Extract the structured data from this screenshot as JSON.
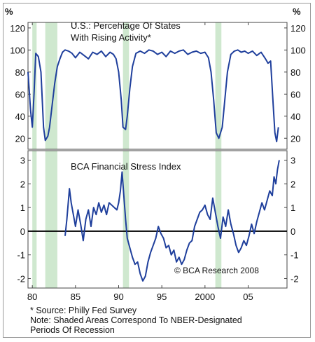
{
  "chart_data": [
    {
      "type": "line",
      "title": "U.S.: Percentage Of States With Rising Activity*",
      "ylabel": "%",
      "ylim": [
        10,
        125
      ],
      "yticks": [
        "20",
        "40",
        "60",
        "80",
        "100",
        "120"
      ],
      "xlim": [
        1979.5,
        2009.5
      ],
      "series": [
        {
          "x": [
            1979.5,
            1979.8,
            1980.0,
            1980.2,
            1980.4,
            1980.7,
            1981.0,
            1981.3,
            1981.5,
            1981.8,
            1982.0,
            1982.3,
            1982.6,
            1982.9,
            1983.2,
            1983.5,
            1983.8,
            1984.2,
            1984.6,
            1985.0,
            1985.5,
            1986.0,
            1986.5,
            1987.0,
            1987.5,
            1988.0,
            1988.5,
            1989.0,
            1989.4,
            1989.7,
            1990.0,
            1990.3,
            1990.5,
            1990.8,
            1991.0,
            1991.3,
            1991.6,
            1992.0,
            1992.5,
            1993.0,
            1993.5,
            1994.0,
            1994.5,
            1995.0,
            1995.5,
            1996.0,
            1996.5,
            1997.0,
            1997.5,
            1998.0,
            1998.5,
            1999.0,
            1999.5,
            2000.0,
            2000.4,
            2000.7,
            2001.0,
            2001.3,
            2001.6,
            2002.0,
            2002.3,
            2002.6,
            2003.0,
            2003.4,
            2003.8,
            2004.2,
            2004.6,
            2005.0,
            2005.5,
            2006.0,
            2006.5,
            2007.0,
            2007.3,
            2007.6,
            2007.9,
            2008.1,
            2008.3,
            2008.5
          ],
          "values": [
            80,
            45,
            30,
            60,
            97,
            94,
            80,
            30,
            18,
            22,
            30,
            50,
            70,
            85,
            92,
            98,
            100,
            99,
            97,
            93,
            98,
            95,
            92,
            98,
            96,
            99,
            94,
            98,
            96,
            92,
            80,
            55,
            30,
            28,
            40,
            65,
            85,
            97,
            99,
            97,
            100,
            99,
            96,
            98,
            94,
            99,
            97,
            99,
            100,
            96,
            98,
            99,
            97,
            98,
            93,
            80,
            55,
            25,
            20,
            30,
            55,
            80,
            96,
            99,
            100,
            98,
            99,
            97,
            99,
            95,
            98,
            92,
            88,
            90,
            50,
            25,
            17,
            30
          ],
          "color": "#1f3f9c"
        }
      ]
    },
    {
      "type": "line",
      "title": "BCA Financial Stress Index",
      "ylim": [
        -2.4,
        3.4
      ],
      "yticks": [
        "-2",
        "-1",
        "0",
        "1",
        "2",
        "3"
      ],
      "xlim": [
        1979.5,
        2009.5
      ],
      "xticks": [
        "80",
        "85",
        "90",
        "95",
        "2000",
        "05"
      ],
      "xtick_values": [
        1980,
        1985,
        1990,
        1995,
        2000,
        2005
      ],
      "annotation": "© BCA Research 2008",
      "series": [
        {
          "x": [
            1983.8,
            1984.0,
            1984.3,
            1984.5,
            1984.8,
            1985.0,
            1985.3,
            1985.6,
            1985.9,
            1986.2,
            1986.5,
            1986.8,
            1987.1,
            1987.4,
            1987.7,
            1988.0,
            1988.3,
            1988.6,
            1988.9,
            1989.2,
            1989.5,
            1989.8,
            1990.0,
            1990.2,
            1990.4,
            1990.6,
            1990.8,
            1991.0,
            1991.3,
            1991.6,
            1991.9,
            1992.2,
            1992.5,
            1992.8,
            1993.1,
            1993.4,
            1993.7,
            1994.0,
            1994.3,
            1994.6,
            1994.9,
            1995.2,
            1995.5,
            1995.8,
            1996.1,
            1996.4,
            1996.7,
            1997.0,
            1997.3,
            1997.6,
            1997.9,
            1998.2,
            1998.5,
            1998.8,
            1999.1,
            1999.4,
            1999.7,
            2000.0,
            2000.3,
            2000.6,
            2000.9,
            2001.2,
            2001.5,
            2001.8,
            2002.1,
            2002.4,
            2002.7,
            2003.0,
            2003.3,
            2003.6,
            2003.9,
            2004.2,
            2004.5,
            2004.8,
            2005.1,
            2005.4,
            2005.7,
            2006.0,
            2006.3,
            2006.6,
            2006.9,
            2007.2,
            2007.5,
            2007.8,
            2008.0,
            2008.2,
            2008.4,
            2008.6
          ],
          "values": [
            -0.2,
            0.5,
            1.8,
            1.2,
            0.6,
            0.2,
            0.9,
            0.3,
            -0.4,
            0.5,
            0.9,
            0.2,
            1.0,
            0.7,
            1.2,
            0.8,
            1.1,
            0.7,
            1.2,
            1.1,
            1.0,
            0.9,
            1.2,
            1.7,
            2.5,
            1.5,
            0.5,
            -0.3,
            -0.7,
            -1.1,
            -1.4,
            -1.3,
            -1.8,
            -2.1,
            -1.9,
            -1.3,
            -0.9,
            -0.6,
            -0.3,
            0.2,
            -0.1,
            -0.3,
            -0.7,
            -0.6,
            -1.0,
            -0.8,
            -1.3,
            -1.1,
            -1.4,
            -1.2,
            -0.8,
            -0.5,
            -0.4,
            0.2,
            0.5,
            0.8,
            0.9,
            1.1,
            0.7,
            0.5,
            1.4,
            0.8,
            0.2,
            -0.3,
            0.6,
            0.2,
            0.9,
            0.3,
            -0.1,
            -0.6,
            -0.9,
            -0.7,
            -0.4,
            -0.6,
            -0.2,
            0.3,
            -0.1,
            0.4,
            0.8,
            1.2,
            0.9,
            1.3,
            1.7,
            1.5,
            2.3,
            2.0,
            2.6,
            3.0
          ],
          "color": "#1f3f9c"
        }
      ]
    }
  ],
  "recessions": [
    [
      1980.0,
      1980.5
    ],
    [
      1981.5,
      1982.9
    ],
    [
      1990.5,
      1991.2
    ],
    [
      2001.2,
      2001.9
    ]
  ],
  "recession_color": "#cfe8cf",
  "line_color": "#1f3f9c",
  "notes": {
    "source": "* Source: Philly Fed Survey",
    "line2": "Note: Shaded Areas Correspond To NBER-Designated",
    "line3": "Periods Of Recession"
  }
}
